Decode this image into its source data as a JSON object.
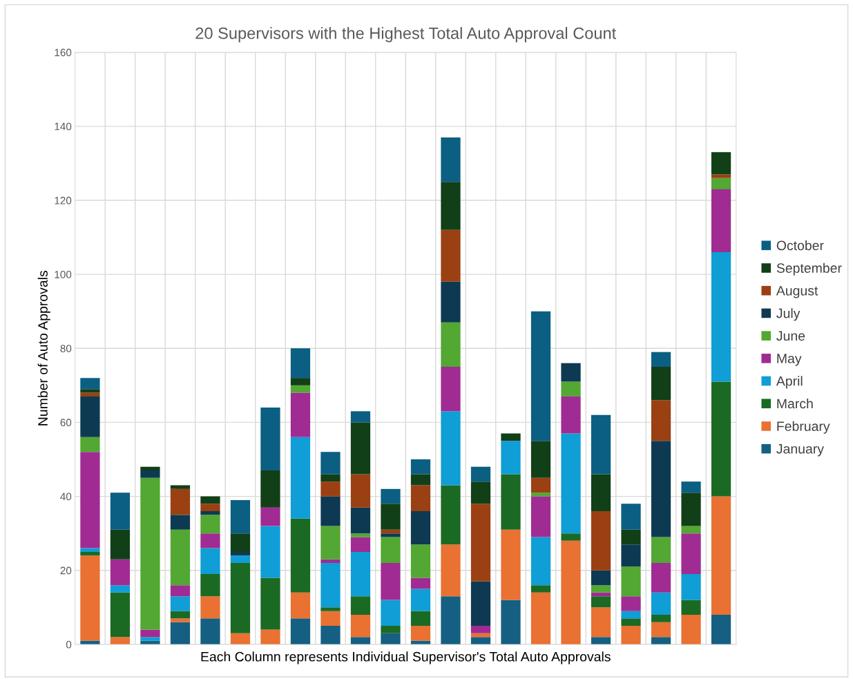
{
  "chart_data": {
    "type": "bar",
    "stacked": true,
    "title": "20 Supervisors with the Highest Total Auto Approval Count",
    "xlabel": "Each Column represents Individual Supervisor's Total Auto Approvals",
    "ylabel": "Number of Auto Approvals",
    "categories": [
      null,
      null,
      null,
      null,
      null,
      null,
      null,
      null,
      null,
      null,
      null,
      null,
      null,
      null,
      null,
      null,
      null,
      null,
      null,
      null,
      null,
      null
    ],
    "ylim": [
      0,
      160
    ],
    "yticks": [
      0,
      20,
      40,
      60,
      80,
      100,
      120,
      140,
      160
    ],
    "grid": true,
    "legend": "right",
    "series": [
      {
        "name": "January",
        "color": "#156082",
        "values": [
          1,
          0,
          1,
          6,
          7,
          0,
          0,
          7,
          5,
          2,
          3,
          1,
          13,
          2,
          12,
          0,
          0,
          2,
          0,
          2,
          0,
          8
        ]
      },
      {
        "name": "February",
        "color": "#e97132",
        "values": [
          23,
          2,
          0,
          1,
          6,
          3,
          4,
          7,
          4,
          6,
          0,
          4,
          14,
          1,
          19,
          14,
          28,
          8,
          5,
          4,
          8,
          32
        ]
      },
      {
        "name": "March",
        "color": "#1b6a24",
        "values": [
          1,
          12,
          0,
          2,
          6,
          19,
          14,
          20,
          1,
          5,
          2,
          4,
          16,
          0,
          15,
          2,
          2,
          3,
          2,
          2,
          4,
          31
        ]
      },
      {
        "name": "April",
        "color": "#0f9ed5",
        "values": [
          1,
          2,
          1,
          4,
          7,
          2,
          14,
          22,
          12,
          12,
          7,
          6,
          20,
          0,
          9,
          13,
          27,
          0,
          2,
          6,
          7,
          35
        ]
      },
      {
        "name": "May",
        "color": "#a02b93",
        "values": [
          26,
          7,
          2,
          3,
          4,
          0,
          5,
          12,
          1,
          4,
          10,
          3,
          12,
          2,
          0,
          11,
          10,
          1,
          4,
          8,
          11,
          17
        ]
      },
      {
        "name": "June",
        "color": "#52a832",
        "values": [
          4,
          0,
          41,
          15,
          5,
          0,
          0,
          2,
          9,
          1,
          7,
          9,
          12,
          0,
          0,
          1,
          4,
          2,
          8,
          7,
          2,
          3
        ]
      },
      {
        "name": "July",
        "color": "#0d3a52",
        "values": [
          11,
          0,
          2,
          4,
          1,
          1,
          0,
          0,
          8,
          7,
          1,
          9,
          11,
          12,
          0,
          0,
          5,
          4,
          6,
          26,
          0,
          0
        ]
      },
      {
        "name": "August",
        "color": "#9a4012",
        "values": [
          1,
          0,
          0,
          7,
          2,
          0,
          0,
          0,
          4,
          9,
          1,
          7,
          14,
          21,
          0,
          4,
          0,
          16,
          0,
          11,
          0,
          1
        ]
      },
      {
        "name": "September",
        "color": "#113f18",
        "values": [
          1,
          8,
          1,
          1,
          2,
          5,
          10,
          2,
          2,
          14,
          7,
          3,
          13,
          6,
          2,
          10,
          0,
          10,
          4,
          9,
          9,
          6
        ]
      },
      {
        "name": "October",
        "color": "#0b5f82",
        "values": [
          3,
          10,
          0,
          0,
          0,
          9,
          17,
          8,
          6,
          3,
          4,
          4,
          12,
          4,
          0,
          35,
          0,
          16,
          7,
          4,
          3,
          0
        ]
      }
    ]
  }
}
